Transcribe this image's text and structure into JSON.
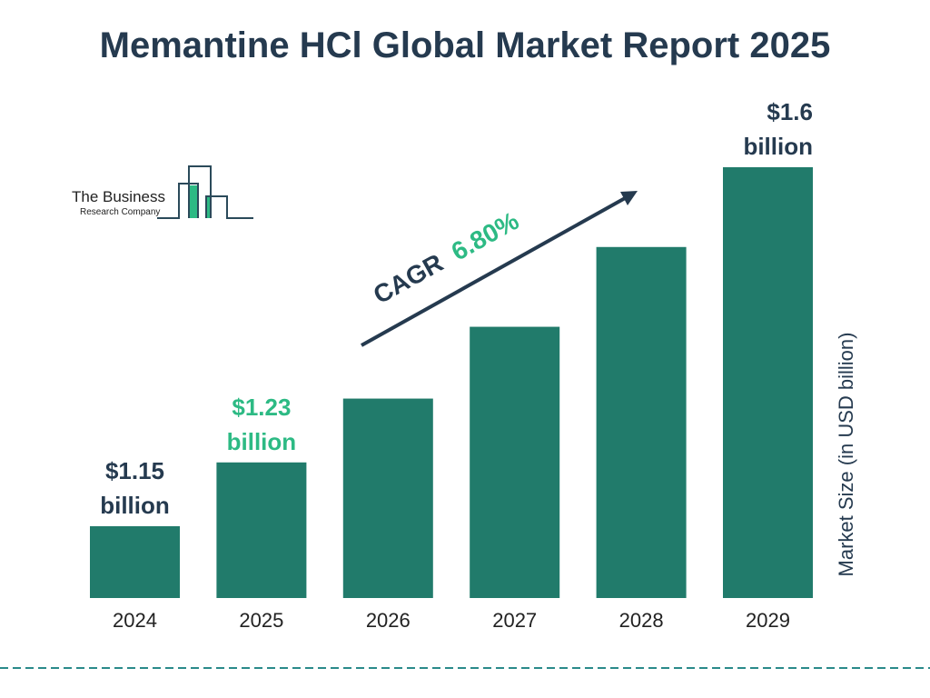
{
  "title": "Memantine HCl Global Market Report 2025",
  "logo": {
    "line1": "The Business",
    "line2": "Research Company"
  },
  "colors": {
    "bar": "#217b6b",
    "text": "#253a4f",
    "highlight": "#2dba84",
    "dash": "#2a8a8a"
  },
  "chart_data": {
    "type": "bar",
    "title": "Memantine HCl Global Market Report 2025",
    "categories": [
      "2024",
      "2025",
      "2026",
      "2027",
      "2028",
      "2029"
    ],
    "values": [
      1.15,
      1.23,
      1.31,
      1.4,
      1.5,
      1.6
    ],
    "ylabel": "Market Size (in USD billion)",
    "xlabel": "",
    "grid": false,
    "data_labels": [
      {
        "category": "2024",
        "line1": "$1.15",
        "line2": "billion",
        "highlight": false
      },
      {
        "category": "2025",
        "line1": "$1.23",
        "line2": "billion",
        "highlight": true
      },
      {
        "category": "2029",
        "line1": "$1.6",
        "line2": "billion",
        "highlight": false
      }
    ],
    "annotation": {
      "prefix": "CAGR",
      "value": "6.80%"
    }
  }
}
